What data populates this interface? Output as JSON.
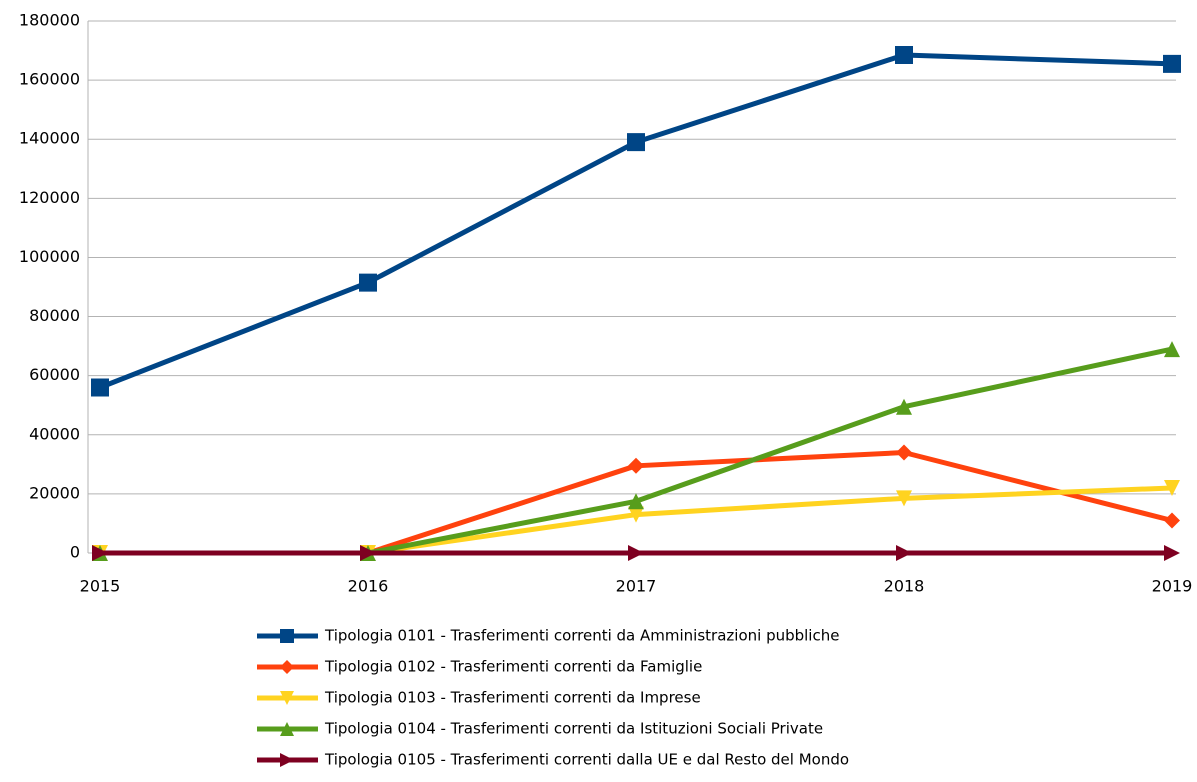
{
  "chart_data": {
    "type": "line",
    "categories": [
      "2015",
      "2016",
      "2017",
      "2018",
      "2019"
    ],
    "series": [
      {
        "name": "Tipologia 0101 - Trasferimenti correnti da Amministrazioni pubbliche",
        "color": "#004586",
        "marker": "square",
        "values": [
          56000,
          91500,
          139000,
          168500,
          165500
        ]
      },
      {
        "name": "Tipologia 0102 - Trasferimenti correnti da Famiglie",
        "color": "#ff420e",
        "marker": "diamond",
        "values": [
          0,
          0,
          29500,
          34000,
          11000
        ]
      },
      {
        "name": "Tipologia 0103 - Trasferimenti correnti da Imprese",
        "color": "#ffd320",
        "marker": "triangle-down",
        "values": [
          0,
          0,
          13000,
          18500,
          22000
        ]
      },
      {
        "name": "Tipologia 0104 - Trasferimenti correnti da Istituzioni Sociali Private",
        "color": "#579d1c",
        "marker": "triangle-up",
        "values": [
          0,
          0,
          17500,
          49500,
          69000
        ]
      },
      {
        "name": "Tipologia 0105 - Trasferimenti correnti dalla UE e dal Resto del Mondo",
        "color": "#7e0021",
        "marker": "triangle-right",
        "values": [
          0,
          0,
          0,
          0,
          0
        ]
      }
    ],
    "ylim": [
      0,
      180000
    ],
    "yticks": [
      0,
      20000,
      40000,
      60000,
      80000,
      100000,
      120000,
      140000,
      160000,
      180000
    ],
    "grid": true,
    "legend": "bottom"
  }
}
